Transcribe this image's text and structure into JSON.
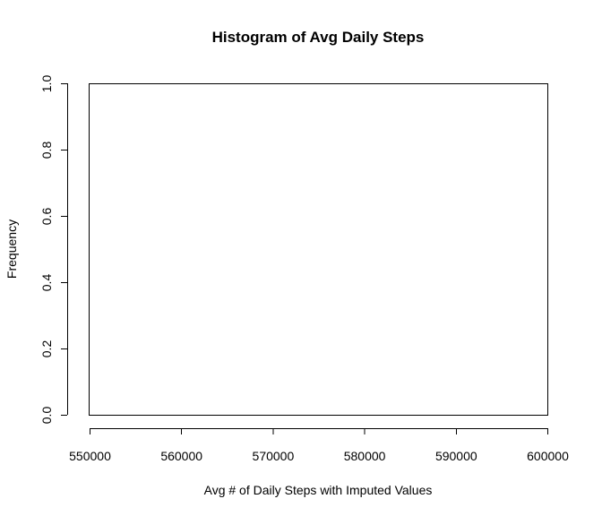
{
  "chart_data": {
    "type": "bar",
    "title": "Histogram of Avg Daily Steps",
    "xlabel": "Avg # of Daily Steps with Imputed Values",
    "ylabel": "Frequency",
    "xlim": [
      550000,
      600000
    ],
    "ylim": [
      0,
      1
    ],
    "x_ticks": [
      "550000",
      "560000",
      "570000",
      "580000",
      "590000",
      "600000"
    ],
    "y_ticks": [
      "0.0",
      "0.2",
      "0.4",
      "0.6",
      "0.8",
      "1.0"
    ],
    "bins": [],
    "grid": false,
    "legend": "none"
  }
}
